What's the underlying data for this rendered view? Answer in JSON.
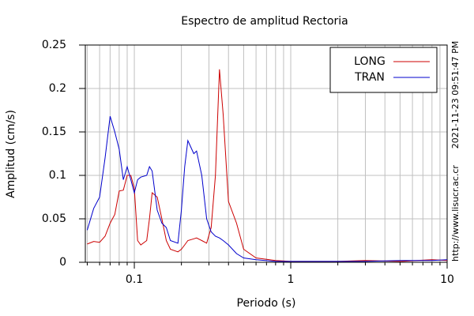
{
  "chart_data": {
    "type": "line",
    "title": "Espectro de amplitud Rectoria",
    "x_label": "Periodo (s)",
    "y_label": "Amplitud (cm/s)",
    "annotations": [
      "2021-11-23 09:51:47 PM",
      "http://www.lisucr.ac.cr"
    ],
    "x": [
      0.05,
      0.055,
      0.06,
      0.065,
      0.07,
      0.075,
      0.08,
      0.085,
      0.09,
      0.095,
      0.1,
      0.105,
      0.11,
      0.12,
      0.125,
      0.13,
      0.14,
      0.15,
      0.16,
      0.17,
      0.19,
      0.2,
      0.21,
      0.22,
      0.24,
      0.25,
      0.27,
      0.29,
      0.31,
      0.33,
      0.35,
      0.37,
      0.4,
      0.45,
      0.5,
      0.6,
      0.8,
      1,
      2,
      3,
      5,
      8,
      10
    ],
    "series": [
      {
        "name": "LONG",
        "color": "#cc0000",
        "values": [
          0.021,
          0.024,
          0.023,
          0.03,
          0.045,
          0.055,
          0.082,
          0.083,
          0.1,
          0.1,
          0.085,
          0.025,
          0.02,
          0.025,
          0.05,
          0.08,
          0.075,
          0.05,
          0.025,
          0.015,
          0.012,
          0.015,
          0.02,
          0.025,
          0.027,
          0.028,
          0.025,
          0.022,
          0.04,
          0.1,
          0.222,
          0.17,
          0.07,
          0.045,
          0.015,
          0.005,
          0.002,
          0.001,
          0.001,
          0.002,
          0.001,
          0.003,
          0.002
        ]
      },
      {
        "name": "TRAN",
        "color": "#0000cc",
        "values": [
          0.037,
          0.062,
          0.075,
          0.12,
          0.168,
          0.15,
          0.13,
          0.095,
          0.11,
          0.095,
          0.08,
          0.095,
          0.098,
          0.1,
          0.11,
          0.105,
          0.06,
          0.045,
          0.04,
          0.025,
          0.022,
          0.06,
          0.11,
          0.14,
          0.125,
          0.128,
          0.1,
          0.05,
          0.035,
          0.03,
          0.028,
          0.025,
          0.02,
          0.01,
          0.005,
          0.003,
          0.001,
          0.001,
          0.001,
          0.001,
          0.002,
          0.002,
          0.003
        ]
      }
    ],
    "xlim": [
      0.0486,
      10
    ],
    "xticks": [
      0.1,
      1,
      10
    ],
    "xminor": [
      0.05,
      0.06,
      0.07,
      0.08,
      0.09,
      0.2,
      0.3,
      0.4,
      0.5,
      0.6,
      0.7,
      0.8,
      0.9,
      2,
      3,
      4,
      5,
      6,
      7,
      8,
      9
    ],
    "xlog": true,
    "ylim": [
      0,
      0.25
    ],
    "yticks": [
      0,
      0.05,
      0.1,
      0.15,
      0.2,
      0.25
    ],
    "grid": true,
    "legend": "top-right"
  }
}
